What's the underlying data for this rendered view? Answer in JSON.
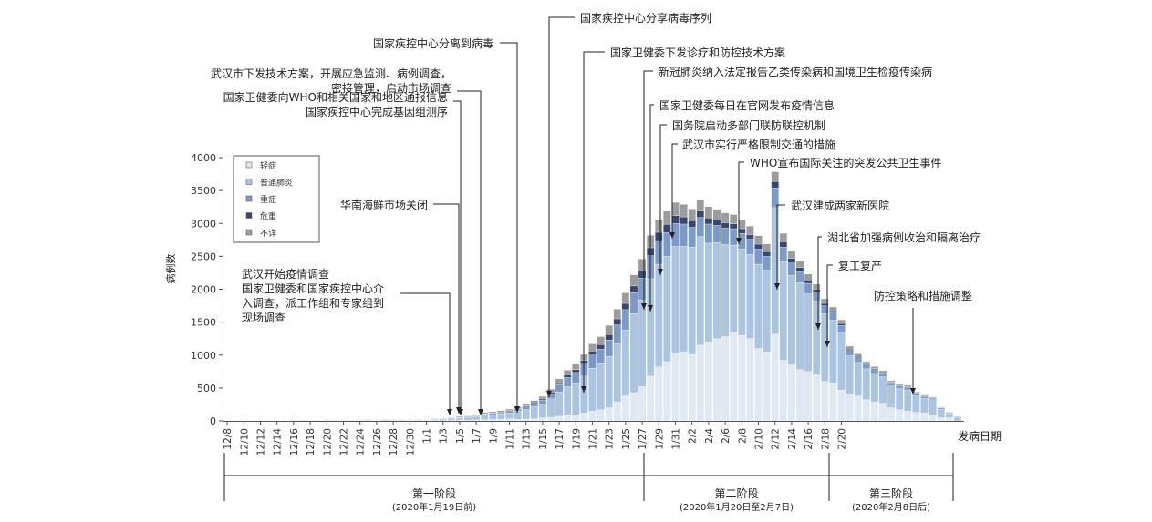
{
  "chart_data": {
    "type": "bar",
    "stacked": true,
    "ylabel": "病例数",
    "xlabel": "发病日期",
    "ylim": [
      0,
      4000
    ],
    "yticks": [
      "0",
      "500",
      "1000",
      "1500",
      "2000",
      "2500",
      "3000",
      "3500",
      "4000"
    ],
    "xtick_labels": [
      "12/8",
      "12/10",
      "12/12",
      "12/14",
      "12/16",
      "12/18",
      "12/20",
      "12/22",
      "12/24",
      "12/26",
      "12/28",
      "12/30",
      "1/1",
      "1/3",
      "1/5",
      "1/7",
      "1/9",
      "1/11",
      "1/13",
      "1/15",
      "1/17",
      "1/19",
      "1/21",
      "1/23",
      "1/25",
      "1/27",
      "1/29",
      "1/31",
      "2/2",
      "2/4",
      "2/6",
      "2/8",
      "2/10",
      "2/12",
      "2/14",
      "2/16",
      "2/18",
      "2/20"
    ],
    "legend_position": "top-left",
    "series_colors": [
      "#dfe8f3",
      "#aac4e2",
      "#7c9ac9",
      "#37476f",
      "#9c9c9c"
    ],
    "series": [
      {
        "name": "轻症",
        "values": [
          1,
          1,
          1,
          1,
          1,
          1,
          1,
          1,
          2,
          2,
          2,
          2,
          3,
          3,
          3,
          3,
          3,
          3,
          3,
          5,
          4,
          3,
          2,
          3,
          3,
          5,
          6,
          8,
          10,
          12,
          15,
          18,
          20,
          25,
          30,
          25,
          28,
          35,
          45,
          55,
          70,
          80,
          95,
          120,
          150,
          170,
          200,
          290,
          380,
          430,
          520,
          680,
          820,
          900,
          1020,
          1050,
          1010,
          1150,
          1200,
          1250,
          1280,
          1350,
          1300,
          1250,
          1100,
          1050,
          1320,
          920,
          850,
          780,
          750,
          700,
          600,
          580,
          470,
          410,
          380,
          320,
          290,
          270,
          200,
          170,
          150,
          130,
          120,
          90,
          50,
          50
        ]
      },
      {
        "name": "普通肺炎",
        "values": [
          3,
          4,
          3,
          3,
          3,
          4,
          3,
          3,
          8,
          5,
          4,
          4,
          6,
          8,
          7,
          8,
          8,
          10,
          10,
          12,
          10,
          10,
          8,
          10,
          8,
          15,
          18,
          25,
          30,
          35,
          50,
          70,
          75,
          80,
          90,
          120,
          145,
          180,
          210,
          280,
          370,
          440,
          480,
          560,
          650,
          700,
          780,
          880,
          1000,
          1200,
          1320,
          1480,
          1560,
          1600,
          1630,
          1600,
          1630,
          1650,
          1500,
          1460,
          1400,
          1320,
          1310,
          1280,
          1280,
          1240,
          1920,
          1500,
          1360,
          1320,
          1180,
          1120,
          1030,
          950,
          880,
          580,
          510,
          470,
          430,
          400,
          330,
          320,
          320,
          250,
          220,
          230,
          130,
          60,
          50
        ]
      },
      {
        "name": "重症",
        "values": [
          1,
          1,
          1,
          1,
          1,
          2,
          1,
          1,
          2,
          2,
          1,
          1,
          2,
          3,
          2,
          3,
          3,
          4,
          3,
          4,
          4,
          4,
          3,
          4,
          3,
          5,
          6,
          8,
          9,
          10,
          12,
          15,
          18,
          20,
          25,
          30,
          40,
          45,
          60,
          80,
          110,
          140,
          160,
          180,
          200,
          220,
          250,
          290,
          310,
          320,
          330,
          350,
          360,
          360,
          350,
          340,
          300,
          290,
          290,
          260,
          250,
          250,
          240,
          230,
          230,
          210,
          300,
          220,
          190,
          170,
          160,
          140,
          120,
          110,
          100,
          80,
          70,
          60,
          60,
          50,
          45,
          40,
          35,
          30,
          28,
          25,
          18,
          10,
          10
        ]
      },
      {
        "name": "危重",
        "values": [
          1,
          0,
          0,
          0,
          0,
          1,
          0,
          0,
          1,
          1,
          0,
          0,
          1,
          1,
          1,
          1,
          1,
          1,
          1,
          1,
          1,
          1,
          1,
          1,
          1,
          2,
          2,
          3,
          3,
          4,
          5,
          6,
          7,
          8,
          10,
          10,
          12,
          15,
          18,
          22,
          30,
          40,
          45,
          55,
          60,
          70,
          80,
          90,
          95,
          100,
          110,
          120,
          125,
          125,
          120,
          110,
          100,
          100,
          95,
          85,
          80,
          75,
          70,
          70,
          75,
          70,
          95,
          80,
          70,
          60,
          50,
          40,
          35,
          30,
          30,
          20,
          18,
          15,
          15,
          12,
          10,
          10,
          10,
          8,
          7,
          5,
          5,
          3,
          3
        ]
      },
      {
        "name": "不详",
        "values": [
          2,
          2,
          2,
          2,
          2,
          2,
          2,
          2,
          4,
          3,
          2,
          2,
          3,
          5,
          4,
          4,
          4,
          5,
          4,
          6,
          5,
          4,
          4,
          6,
          4,
          8,
          8,
          10,
          12,
          14,
          16,
          18,
          20,
          22,
          25,
          25,
          28,
          35,
          40,
          45,
          60,
          70,
          80,
          95,
          110,
          120,
          140,
          150,
          160,
          170,
          180,
          190,
          195,
          200,
          200,
          190,
          180,
          175,
          170,
          160,
          150,
          140,
          140,
          130,
          130,
          120,
          150,
          130,
          110,
          100,
          90,
          80,
          70,
          60,
          55,
          45,
          40,
          35,
          30,
          30,
          25,
          25,
          25,
          20,
          18,
          15,
          10,
          8,
          8
        ]
      }
    ]
  },
  "annotations": [
    "国家疾控中心分享病毒序列",
    "国家疾控中心分离到病毒",
    "国家卫健委下发诊疗和防控技术方案",
    "武汉市下发技术方案，开展应急监测、病例调查，",
    "密接管理，启动市场调查",
    "新冠肺炎纳入法定报告乙类传染病和国境卫生检疫传染病",
    "国家卫健委向WHO和相关国家和地区通报信息",
    "国家疾控中心完成基因组测序",
    "国家卫健委每日在官网发布疫情信息",
    "国务院启动多部门联防联控机制",
    "武汉市实行严格限制交通的措施",
    "WHO宣布国际关注的突发公共卫生事件",
    "华南海鲜市场关闭",
    "武汉建成两家新医院",
    "湖北省加强病例收治和隔离治疗",
    "复工复产",
    "武汉开始疫情调查",
    "国家卫健委和国家疾控中心介",
    "入调查，派工作组和专家组到",
    "现场调查",
    "防控策略和措施调整"
  ],
  "phases": [
    {
      "label": "第一阶段",
      "sub": "(2020年1月19日前)"
    },
    {
      "label": "第二阶段",
      "sub": "(2020年1月20日至2月7日)"
    },
    {
      "label": "第三阶段",
      "sub": "(2020年2月8日后)"
    }
  ]
}
